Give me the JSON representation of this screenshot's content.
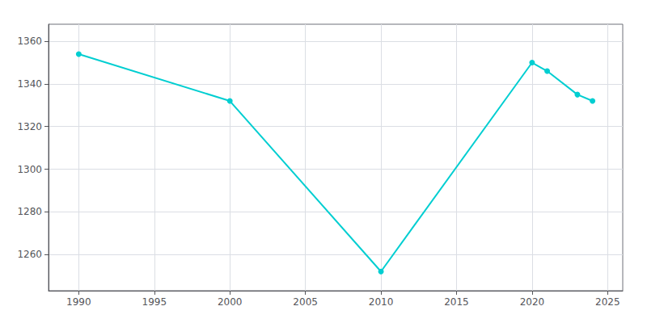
{
  "chart_data": {
    "type": "line",
    "x": [
      1990,
      2000,
      2010,
      2020,
      2021,
      2023,
      2024
    ],
    "values": [
      1354,
      1332,
      1252,
      1350,
      1346,
      1335,
      1332
    ],
    "color": "#00CED1",
    "marker": "circle",
    "xlim": [
      1988,
      2026
    ],
    "xticks": [
      1990,
      1995,
      2000,
      2005,
      2010,
      2015,
      2020,
      2025
    ],
    "ylim": [
      1243,
      1368
    ],
    "yticks": [
      1260,
      1280,
      1300,
      1320,
      1340,
      1360
    ],
    "grid": true
  }
}
